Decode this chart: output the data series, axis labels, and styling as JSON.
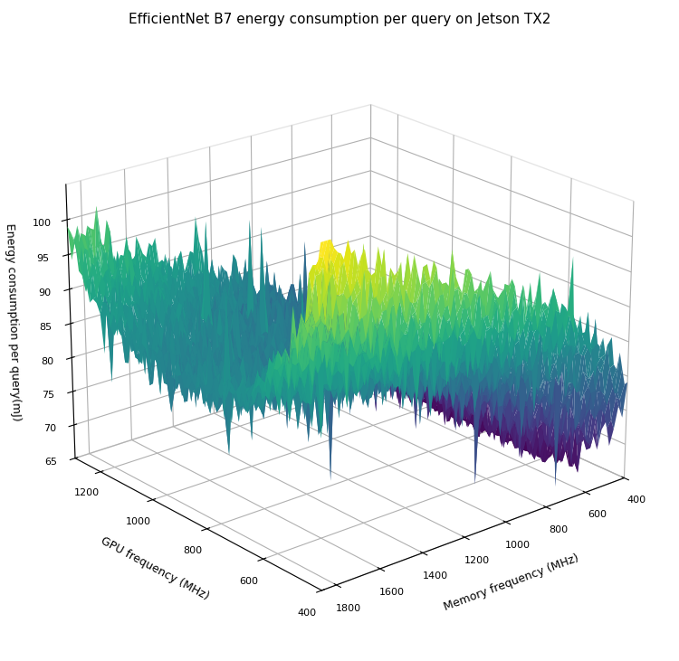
{
  "title": "EfficientNet B7 energy consumption per query on Jetson TX2",
  "xlabel": "Memory frequency (MHz)",
  "ylabel": "GPU frequency (MHz)",
  "zlabel": "Energy consumption per query(mJ)",
  "mem_freq_min": 400,
  "mem_freq_max": 1866,
  "gpu_freq_min": 400,
  "gpu_freq_max": 1300,
  "zlim_min": 65,
  "zlim_max": 105,
  "colormap": "viridis",
  "title_fontsize": 11,
  "axis_label_fontsize": 9,
  "figsize": [
    7.5,
    7.31
  ],
  "dpi": 100,
  "elev": 22,
  "azim": -130,
  "n_mem": 100,
  "n_gpu": 70,
  "noise_scale": 1.8,
  "spike_scale": 5.0
}
